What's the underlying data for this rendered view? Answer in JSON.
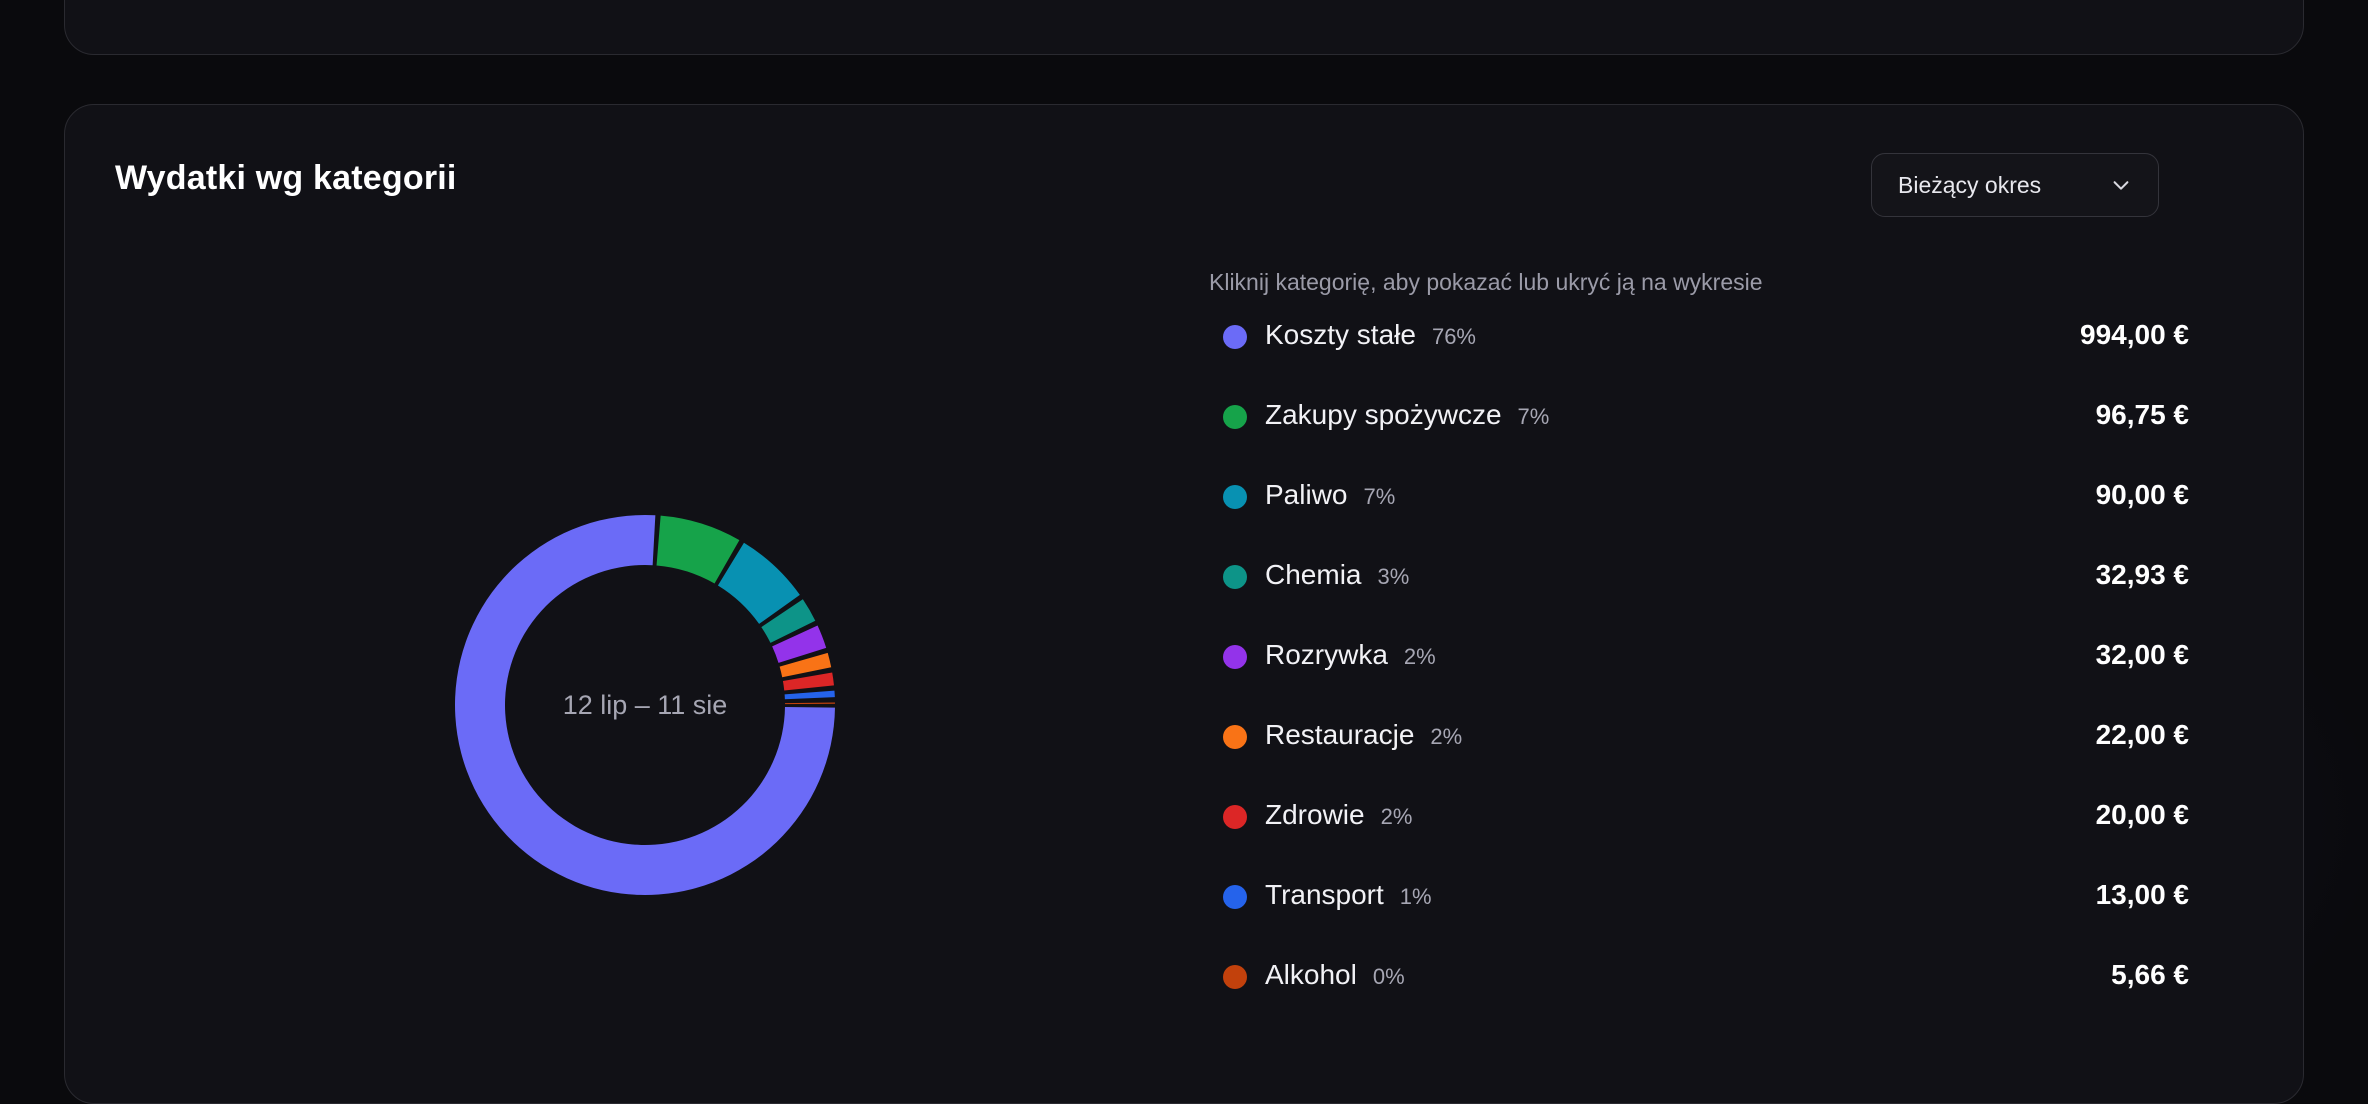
{
  "card": {
    "title": "Wydatki wg kategorii",
    "period_select": {
      "value": "Bieżący okres"
    },
    "hint": "Kliknij kategorię, aby pokazać lub ukryć ją na wykresie",
    "center_label": "12 lip – 11 sie"
  },
  "categories": [
    {
      "name": "Koszty stałe",
      "pct": "76%",
      "amount": "994,00 €",
      "color": "#6b6bf7"
    },
    {
      "name": "Zakupy spożywcze",
      "pct": "7%",
      "amount": "96,75 €",
      "color": "#16a34a"
    },
    {
      "name": "Paliwo",
      "pct": "7%",
      "amount": "90,00 €",
      "color": "#0891b2"
    },
    {
      "name": "Chemia",
      "pct": "3%",
      "amount": "32,93 €",
      "color": "#0d9488"
    },
    {
      "name": "Rozrywka",
      "pct": "2%",
      "amount": "32,00 €",
      "color": "#9333ea"
    },
    {
      "name": "Restauracje",
      "pct": "2%",
      "amount": "22,00 €",
      "color": "#f97316"
    },
    {
      "name": "Zdrowie",
      "pct": "2%",
      "amount": "20,00 €",
      "color": "#dc2626"
    },
    {
      "name": "Transport",
      "pct": "1%",
      "amount": "13,00 €",
      "color": "#2563eb"
    },
    {
      "name": "Alkohol",
      "pct": "0%",
      "amount": "5,66 €",
      "color": "#c2410c"
    }
  ],
  "chart_data": {
    "type": "pie",
    "categories": [
      "Koszty stałe",
      "Zakupy spożywcze",
      "Paliwo",
      "Chemia",
      "Rozrywka",
      "Restauracje",
      "Zdrowie",
      "Transport",
      "Alkohol"
    ],
    "values": [
      994.0,
      96.75,
      90.0,
      32.93,
      32.0,
      22.0,
      20.0,
      13.0,
      5.66
    ],
    "colors": [
      "#6b6bf7",
      "#16a34a",
      "#0891b2",
      "#0d9488",
      "#9333ea",
      "#f97316",
      "#dc2626",
      "#2563eb",
      "#c2410c"
    ]
  }
}
